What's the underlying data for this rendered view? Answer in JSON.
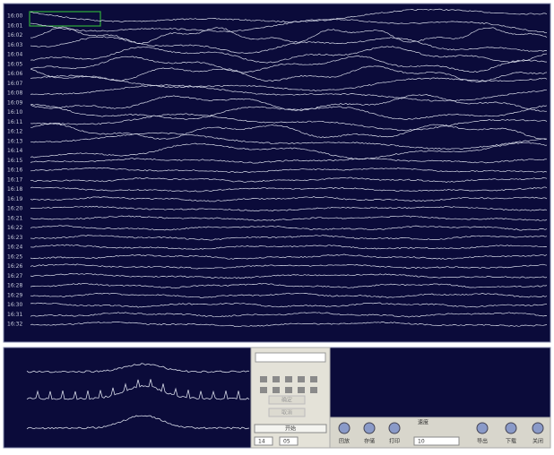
{
  "channels": [
    "16:00",
    "16:01",
    "16:02",
    "16:03",
    "16:04",
    "16:05",
    "16:06",
    "16:07",
    "16:08",
    "16:09",
    "16:10",
    "16:11",
    "16:12",
    "16:13",
    "16:14",
    "16:15",
    "16:16",
    "16:17",
    "16:18",
    "16:19",
    "16:20",
    "16:21",
    "16:22",
    "16:23",
    "16:24",
    "16:25",
    "16:26",
    "16:27",
    "16:28",
    "16:29",
    "16:30",
    "16:31",
    "16:32"
  ],
  "popup": {
    "buttons": [
      "确定",
      "取消"
    ],
    "start": "开始",
    "time": [
      "14",
      "05"
    ]
  },
  "toolbar": {
    "speed_label": "速度",
    "speed_value": "10",
    "buttons": [
      "回放",
      "存储",
      "打印",
      "导出",
      "下载",
      "关闭"
    ]
  }
}
